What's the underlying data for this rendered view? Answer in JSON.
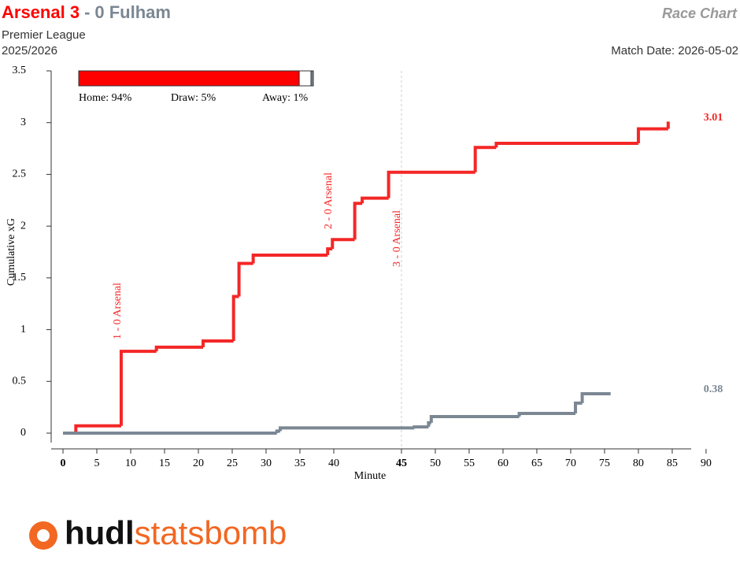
{
  "header": {
    "home": "Arsenal 3",
    "separator": "-",
    "away": "0 Fulham",
    "competition": "Premier League",
    "season": "2025/2026",
    "chart_name": "Race Chart",
    "match_date": "Match Date: 2026-05-02"
  },
  "chart_data": {
    "type": "step",
    "x_label": "Minute",
    "y_label": "Cumulative xG",
    "xlim": [
      0,
      92.8
    ],
    "ylim": [
      0,
      3.5
    ],
    "xticks": [
      0,
      5,
      10,
      15,
      20,
      25,
      30,
      35,
      40,
      {
        "value": 50,
        "label": "45"
      },
      {
        "value": 55,
        "label": "50"
      },
      {
        "value": 60,
        "label": "55"
      },
      {
        "value": 65,
        "label": "60"
      },
      {
        "value": 70,
        "label": "65"
      },
      {
        "value": 75,
        "label": "70"
      },
      {
        "value": 80,
        "label": "75"
      },
      {
        "value": 85,
        "label": "80"
      },
      {
        "value": 90,
        "label": "85"
      },
      {
        "value": 95,
        "label": "90"
      }
    ],
    "yticks": [
      0,
      0.5,
      1,
      1.5,
      2,
      2.5,
      3,
      3.5
    ],
    "series": [
      {
        "name": "Arsenal",
        "color": "#f42727",
        "x": [
          0,
          1.9,
          8.6,
          13.8,
          20.7,
          25.2,
          26.0,
          28.1,
          39.1,
          39.8,
          43.1,
          44.2,
          48.1,
          60.9,
          64.0,
          85.0,
          89.4
        ],
        "values": [
          0,
          0.07,
          0.79,
          0.83,
          0.89,
          1.32,
          1.64,
          1.72,
          1.78,
          1.87,
          2.22,
          2.27,
          2.52,
          2.76,
          2.8,
          2.94,
          3.01
        ]
      },
      {
        "name": "Fulham",
        "color": "#7b8793",
        "x": [
          0,
          31.6,
          32.1,
          51.9,
          54.0,
          54.4,
          67.4,
          75.7,
          76.7,
          80.9
        ],
        "values": [
          0,
          0.02,
          0.05,
          0.06,
          0.1,
          0.16,
          0.19,
          0.29,
          0.38,
          0.38
        ]
      }
    ],
    "annotations": [
      "1 - 0 Arsenal",
      "2 - 0 Arsenal",
      "3 - 0 Arsenal"
    ],
    "outcomes": [
      {
        "label": "Home: 94%",
        "value": 94,
        "color": "#ff0000"
      },
      {
        "label": "Draw: 5%",
        "value": 5,
        "color": "#ffffff"
      },
      {
        "label": "Away: 1%",
        "value": 1,
        "color": "#7b8793"
      }
    ]
  },
  "logo": {
    "left": "hudl",
    "right": "statsbomb"
  }
}
